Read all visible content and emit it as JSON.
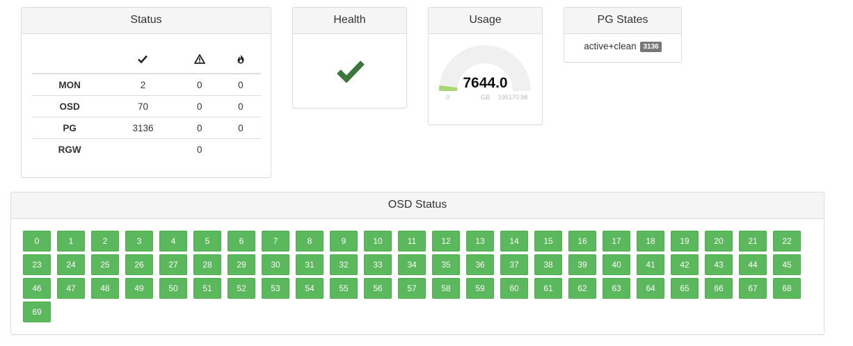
{
  "status": {
    "title": "Status",
    "columns": [
      "ok-icon",
      "warning-icon",
      "error-icon"
    ],
    "rows": [
      {
        "name": "MON",
        "ok": "2",
        "warn": "0",
        "err": "0"
      },
      {
        "name": "OSD",
        "ok": "70",
        "warn": "0",
        "err": "0"
      },
      {
        "name": "PG",
        "ok": "3136",
        "warn": "0",
        "err": "0"
      },
      {
        "name": "RGW",
        "ok": "",
        "warn": "0",
        "err": ""
      }
    ]
  },
  "health": {
    "title": "Health",
    "icon": "check-icon",
    "color": "#3c763d"
  },
  "usage": {
    "title": "Usage",
    "value": "7644.0",
    "min": "0",
    "unit": "GB",
    "max": "195170.98",
    "fraction": 0.0392,
    "fill_color": "#a9d86e",
    "track_color": "#f0f0f0"
  },
  "pg_states": {
    "title": "PG States",
    "state": "active+clean",
    "count": "3136"
  },
  "osd_status": {
    "title": "OSD Status",
    "color": "#5cb85c",
    "osds": [
      "0",
      "1",
      "2",
      "3",
      "4",
      "5",
      "6",
      "7",
      "8",
      "9",
      "10",
      "11",
      "12",
      "13",
      "14",
      "15",
      "16",
      "17",
      "18",
      "19",
      "20",
      "21",
      "22",
      "23",
      "24",
      "25",
      "26",
      "27",
      "28",
      "29",
      "30",
      "31",
      "32",
      "33",
      "34",
      "35",
      "36",
      "37",
      "38",
      "39",
      "40",
      "41",
      "42",
      "43",
      "44",
      "45",
      "46",
      "47",
      "48",
      "49",
      "50",
      "51",
      "52",
      "53",
      "54",
      "55",
      "56",
      "57",
      "58",
      "59",
      "60",
      "61",
      "62",
      "63",
      "64",
      "65",
      "66",
      "67",
      "68",
      "69"
    ]
  }
}
